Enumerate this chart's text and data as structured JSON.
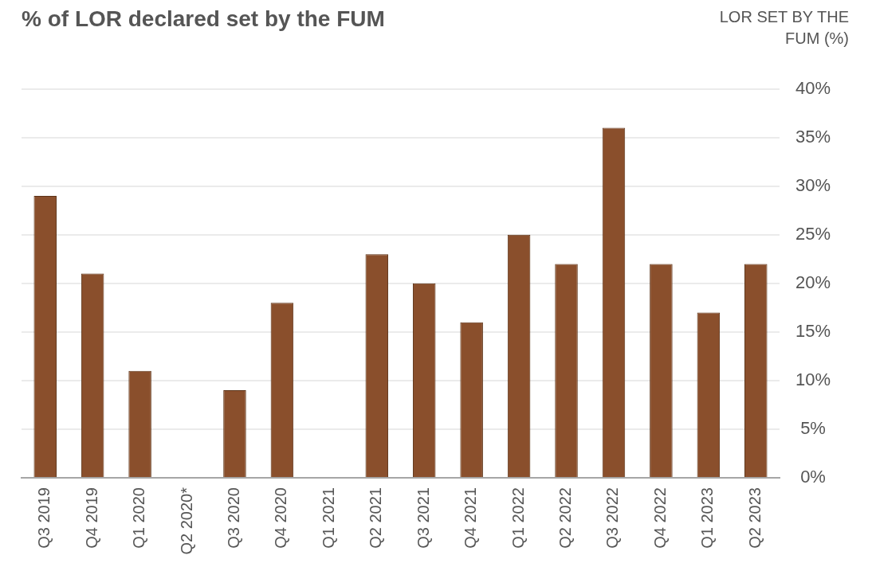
{
  "chart_data": {
    "type": "bar",
    "title": "% of LOR declared set by the FUM",
    "ylabel": "LOR SET BY THE FUM (%)",
    "categories": [
      "Q3 2019",
      "Q4 2019",
      "Q1 2020",
      "Q2 2020*",
      "Q3 2020",
      "Q4 2020",
      "Q1 2021",
      "Q2 2021",
      "Q3 2021",
      "Q4 2021",
      "Q1 2022",
      "Q2 2022",
      "Q3 2022",
      "Q4 2022",
      "Q1 2023",
      "Q2 2023"
    ],
    "values": [
      29,
      21,
      11,
      0,
      9,
      18,
      0,
      23,
      20,
      16,
      25,
      22,
      36,
      22,
      17,
      22
    ],
    "color": "#8a4f2c",
    "ylim": [
      0,
      40
    ],
    "yticks": [
      {
        "value": 0,
        "label": "0%"
      },
      {
        "value": 5,
        "label": "5%"
      },
      {
        "value": 10,
        "label": "10%"
      },
      {
        "value": 15,
        "label": "15%"
      },
      {
        "value": 20,
        "label": "20%"
      },
      {
        "value": 25,
        "label": "25%"
      },
      {
        "value": 30,
        "label": "30%"
      },
      {
        "value": 35,
        "label": "35%"
      },
      {
        "value": 40,
        "label": "40%"
      }
    ],
    "grid": "y"
  }
}
